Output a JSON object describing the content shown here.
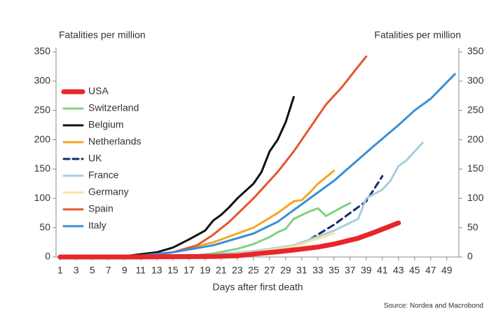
{
  "chart_data": {
    "type": "line",
    "ylabel": "Fatalities per million",
    "y2label": "Fatalities per million",
    "xlabel": "Days after first death",
    "source": "Source: Nordea and Macrobond",
    "xlim": [
      0.5,
      50.5
    ],
    "xticks": [
      1,
      3,
      5,
      7,
      9,
      11,
      13,
      15,
      17,
      19,
      21,
      23,
      25,
      27,
      29,
      31,
      33,
      35,
      37,
      39,
      41,
      43,
      45,
      47,
      49
    ],
    "ylim": [
      0,
      350
    ],
    "yticks": [
      0,
      50,
      100,
      150,
      200,
      250,
      300,
      350
    ],
    "y2lim": [
      0,
      350
    ],
    "y2ticks": [
      0,
      50,
      100,
      150,
      200,
      250,
      300,
      350
    ],
    "series": [
      {
        "name": "USA",
        "color": "#e8262b",
        "x": [
          1,
          10,
          20,
          23,
          25,
          28,
          30,
          33,
          35,
          38,
          40,
          43
        ],
        "values": [
          0,
          0,
          1,
          2,
          5,
          9,
          12,
          17,
          22,
          32,
          42,
          58
        ]
      },
      {
        "name": "Switzerland",
        "color": "#80d280",
        "x": [
          1,
          12,
          18,
          20,
          23,
          25,
          27,
          28,
          29,
          30,
          32,
          33,
          34,
          36,
          37
        ],
        "values": [
          0,
          0,
          3,
          6,
          14,
          22,
          34,
          42,
          48,
          65,
          78,
          83,
          70,
          85,
          92
        ]
      },
      {
        "name": "Belgium",
        "color": "#111111",
        "x": [
          1,
          8,
          10,
          13,
          15,
          17,
          19,
          20,
          21,
          22,
          23,
          25,
          26,
          27,
          28,
          29,
          30
        ],
        "values": [
          0,
          0,
          3,
          8,
          16,
          30,
          45,
          62,
          72,
          85,
          100,
          125,
          145,
          180,
          200,
          230,
          273
        ]
      },
      {
        "name": "Netherlands",
        "color": "#f5a623",
        "x": [
          1,
          10,
          15,
          18,
          20,
          23,
          25,
          28,
          30,
          31,
          32,
          33,
          35
        ],
        "values": [
          0,
          0,
          8,
          18,
          25,
          40,
          50,
          75,
          95,
          97,
          110,
          125,
          147
        ]
      },
      {
        "name": "UK",
        "color": "#1a2a6c",
        "dash": true,
        "x": [
          1,
          15,
          20,
          23,
          25,
          28,
          30,
          32,
          35,
          38,
          39,
          41
        ],
        "values": [
          0,
          0,
          2,
          5,
          8,
          13,
          18,
          30,
          55,
          85,
          95,
          138
        ]
      },
      {
        "name": "France",
        "color": "#a9cde0",
        "x": [
          1,
          15,
          20,
          25,
          30,
          35,
          38,
          39,
          41,
          42,
          43,
          44,
          46
        ],
        "values": [
          0,
          1,
          4,
          10,
          20,
          45,
          65,
          100,
          115,
          130,
          155,
          165,
          195
        ]
      },
      {
        "name": "Germany",
        "color": "#f7e3a0",
        "x": [
          1,
          15,
          20,
          25,
          30,
          35
        ],
        "values": [
          0,
          0,
          2,
          8,
          18,
          40
        ]
      },
      {
        "name": "Spain",
        "color": "#e4572e",
        "x": [
          1,
          12,
          15,
          18,
          20,
          22,
          25,
          28,
          30,
          32,
          34,
          36,
          38,
          39
        ],
        "values": [
          0,
          1,
          8,
          20,
          38,
          60,
          100,
          145,
          180,
          220,
          260,
          290,
          325,
          342
        ]
      },
      {
        "name": "Italy",
        "color": "#3b8fd4",
        "x": [
          1,
          10,
          15,
          20,
          25,
          28,
          30,
          35,
          40,
          43,
          45,
          47,
          50
        ],
        "values": [
          0,
          1,
          8,
          20,
          40,
          60,
          80,
          130,
          190,
          225,
          250,
          270,
          312
        ]
      }
    ]
  }
}
